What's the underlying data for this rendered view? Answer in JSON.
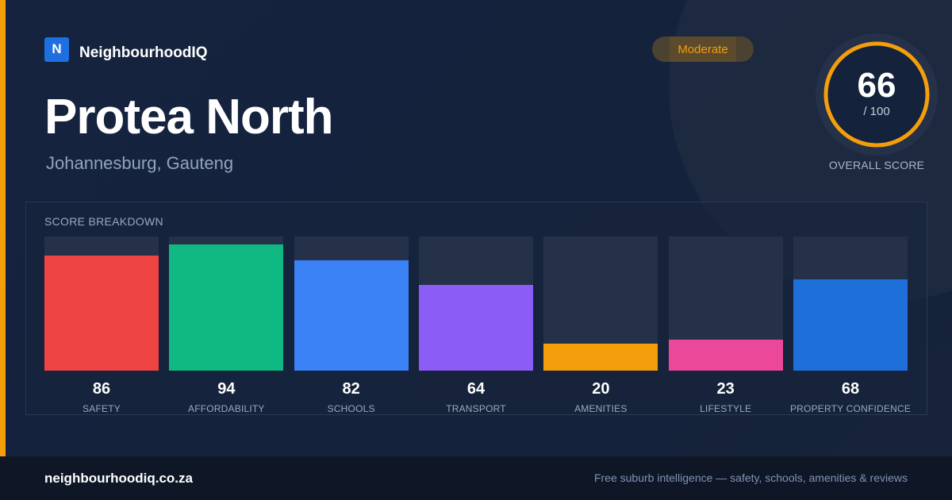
{
  "brand": {
    "logo_letter": "N",
    "name": "NeighbourhoodIQ"
  },
  "header": {
    "title": "Protea North",
    "subtitle": "Johannesburg, Gauteng",
    "badge": "Moderate"
  },
  "overall": {
    "score": "66",
    "max": "/ 100",
    "label": "OVERALL SCORE",
    "fraction": 0.66,
    "ring_color": "#f59e0b"
  },
  "breakdown": {
    "heading": "SCORE BREAKDOWN",
    "items": [
      {
        "value": "86",
        "label": "SAFETY",
        "color": "#ef4444"
      },
      {
        "value": "94",
        "label": "AFFORDABILITY",
        "color": "#10b981"
      },
      {
        "value": "82",
        "label": "SCHOOLS",
        "color": "#3b82f6"
      },
      {
        "value": "64",
        "label": "TRANSPORT",
        "color": "#8b5cf6"
      },
      {
        "value": "20",
        "label": "AMENITIES",
        "color": "#f59e0b"
      },
      {
        "value": "23",
        "label": "LIFESTYLE",
        "color": "#ec4899"
      },
      {
        "value": "68",
        "label": "PROPERTY CONFIDENCE",
        "color": "#1e6fd9"
      }
    ]
  },
  "footer": {
    "url": "neighbourhoodiq.co.za",
    "tagline": "Free suburb intelligence — safety, schools, amenities & reviews"
  },
  "colors": {
    "accent": "#f59e0b",
    "brand": "#1e6fe0",
    "background": "#16223a"
  }
}
